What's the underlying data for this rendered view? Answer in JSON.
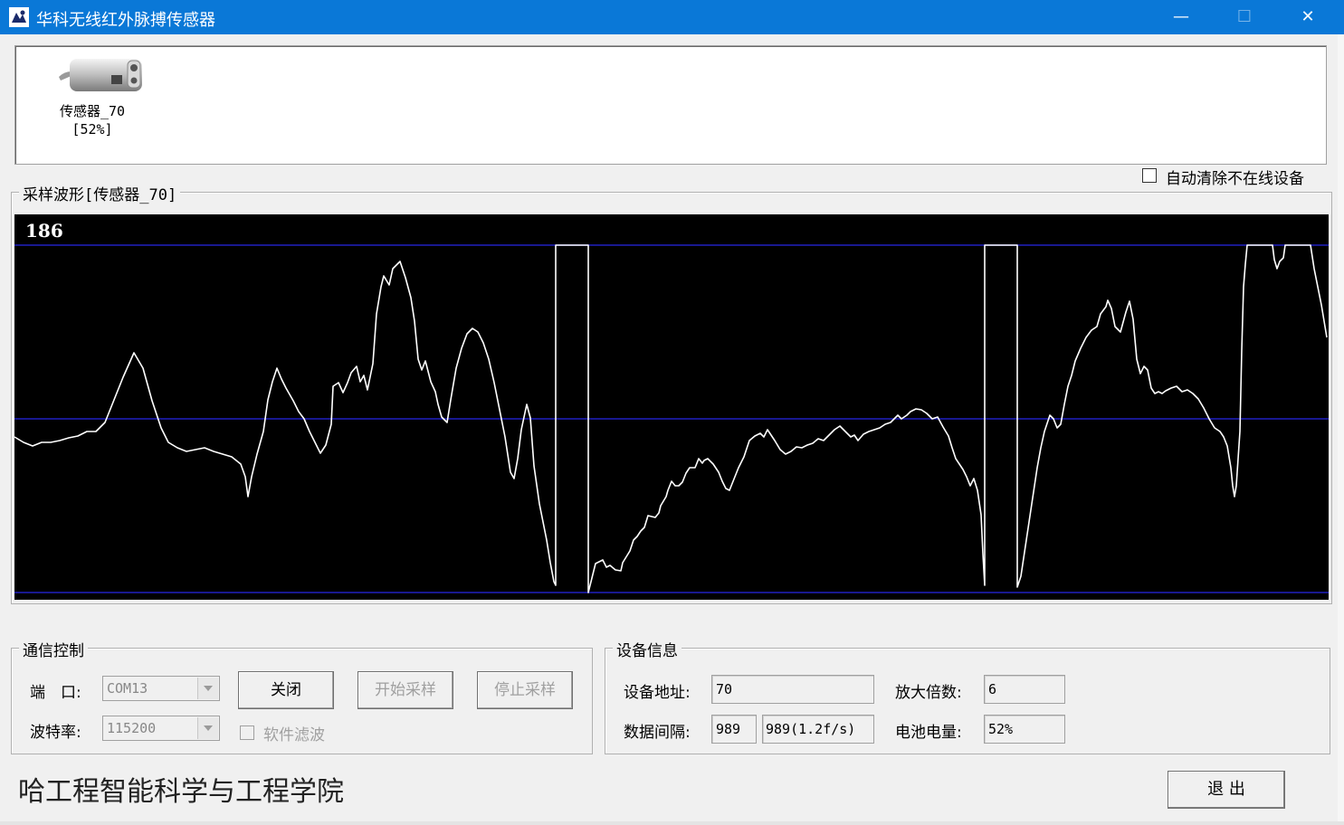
{
  "window": {
    "title": "华科无线红外脉搏传感器",
    "min_glyph": "—",
    "max_glyph": "☐",
    "close_glyph": "✕"
  },
  "device_list": {
    "items": [
      {
        "name": "传感器_70",
        "battery": "[52%]"
      }
    ]
  },
  "auto_clear": {
    "label": "自动清除不在线设备",
    "checked": false
  },
  "waveform": {
    "title": "采样波形[传感器_70]",
    "max_label": "186"
  },
  "comm": {
    "title": "通信控制",
    "port_label": "端　口:",
    "port_value": "COM13",
    "baud_label": "波特率:",
    "baud_value": "115200",
    "close_button": "关闭",
    "start_button": "开始采样",
    "stop_button": "停止采样",
    "filter_label": "软件滤波",
    "filter_checked": false
  },
  "device_info": {
    "title": "设备信息",
    "address_label": "设备地址:",
    "address_value": "70",
    "gain_label": "放大倍数:",
    "gain_value": "6",
    "interval_label": "数据间隔:",
    "interval_value": "989",
    "interval_rate": "989(1.2f/s)",
    "battery_label": "电池电量:",
    "battery_value": "52%"
  },
  "footer": {
    "org": "哈工程智能科学与工程学院",
    "exit_button": "退 出"
  },
  "colors": {
    "titlebar": "#0a78d7",
    "plot_bg": "#000000",
    "grid_line": "#2020c0",
    "trace": "#ffffff"
  }
}
